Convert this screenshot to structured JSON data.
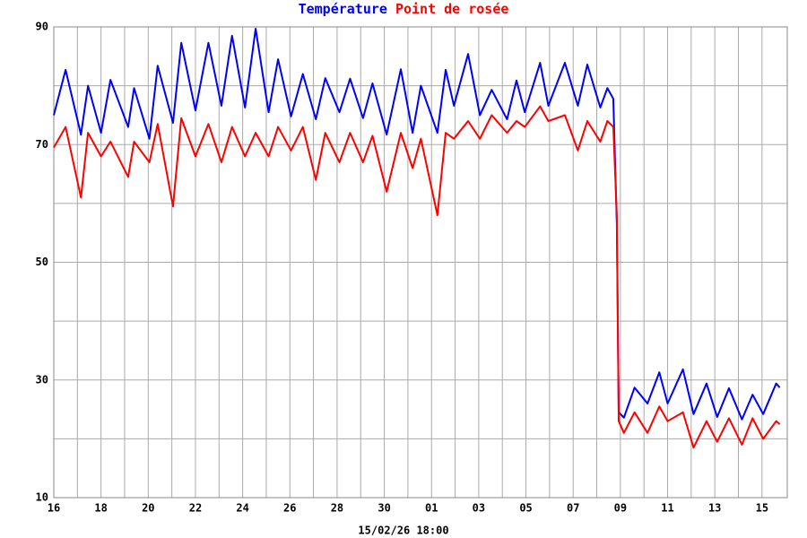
{
  "chart_data": {
    "type": "line",
    "x_label": "15/02/26 18:00",
    "x": [
      0,
      0.5,
      1.15,
      1.45,
      2,
      2.4,
      3.15,
      3.4,
      4.05,
      4.4,
      5.05,
      5.4,
      6,
      6.55,
      7.1,
      7.55,
      8.1,
      8.55,
      9.1,
      9.5,
      10.05,
      10.55,
      11.1,
      11.5,
      12.1,
      12.55,
      13.1,
      13.5,
      14.1,
      14.7,
      15.2,
      15.55,
      16.25,
      16.6,
      16.95,
      17.55,
      18.05,
      18.55,
      19.2,
      19.6,
      19.95,
      20.6,
      20.95,
      21.65,
      22.2,
      22.6,
      23.15,
      23.45,
      23.7,
      23.85,
      23.93,
      24.15,
      24.6,
      25.15,
      25.65,
      26,
      26.65,
      27.1,
      27.65,
      28.1,
      28.6,
      29.15,
      29.6,
      30.05,
      30.6,
      30.75
    ],
    "series": [
      {
        "name": "Température",
        "color": "#0000ff",
        "values": [
          75,
          82.7,
          71.7,
          80,
          72,
          81,
          73,
          79.6,
          71,
          83.4,
          73.7,
          87.3,
          75.8,
          87.3,
          76.6,
          88.5,
          76.3,
          89.7,
          75.5,
          84.5,
          74.8,
          82,
          74.3,
          81.3,
          75.5,
          81.2,
          74.5,
          80.4,
          71.7,
          82.8,
          72,
          80,
          72,
          82.7,
          76.6,
          85.4,
          75,
          79.3,
          74.3,
          80.9,
          75.5,
          83.9,
          76.6,
          83.9,
          76.6,
          83.6,
          76.3,
          79.6,
          77.8,
          56.5,
          24.5,
          23.6,
          28.7,
          26,
          31.3,
          26,
          31.8,
          24.2,
          29.4,
          23.7,
          28.6,
          23.3,
          27.5,
          24.2,
          29.4,
          28.7
        ]
      },
      {
        "name": "Point de rosée",
        "color": "#ff0000",
        "values": [
          69.5,
          73,
          61,
          72,
          68,
          70.5,
          64.5,
          70.5,
          67,
          73.5,
          59.5,
          74.5,
          68,
          73.5,
          67,
          73,
          68,
          72,
          68,
          73,
          69,
          73,
          64,
          72,
          67,
          72,
          67,
          71.5,
          62,
          72,
          66,
          71,
          58,
          72,
          71,
          74,
          71,
          75,
          72,
          74,
          73,
          76.5,
          74,
          75,
          69,
          74,
          70.5,
          74,
          73,
          58,
          23,
          21,
          24.5,
          21,
          25.5,
          23,
          24.5,
          18.5,
          23,
          19.5,
          23.5,
          19,
          23.5,
          20,
          23,
          22.5
        ]
      }
    ],
    "xlim": [
      0,
      31.07
    ],
    "xticks": [
      {
        "value": 0,
        "label": "16"
      },
      {
        "value": 2,
        "label": "18"
      },
      {
        "value": 4,
        "label": "20"
      },
      {
        "value": 6,
        "label": "22"
      },
      {
        "value": 8,
        "label": "24"
      },
      {
        "value": 10,
        "label": "26"
      },
      {
        "value": 12,
        "label": "28"
      },
      {
        "value": 14,
        "label": "30"
      },
      {
        "value": 16,
        "label": "01"
      },
      {
        "value": 18,
        "label": "03"
      },
      {
        "value": 20,
        "label": "05"
      },
      {
        "value": 22,
        "label": "07"
      },
      {
        "value": 24,
        "label": "09"
      },
      {
        "value": 26,
        "label": "11"
      },
      {
        "value": 28,
        "label": "13"
      },
      {
        "value": 30,
        "label": "15"
      }
    ],
    "xminor": [
      1,
      3,
      5,
      7,
      9,
      11,
      13,
      15,
      17,
      19,
      21,
      23,
      25,
      27,
      29
    ],
    "ylim": [
      10,
      90
    ],
    "yticks": [
      10,
      30,
      50,
      70,
      90
    ],
    "yminor": [
      20,
      40,
      60,
      80
    ],
    "grid": true
  }
}
